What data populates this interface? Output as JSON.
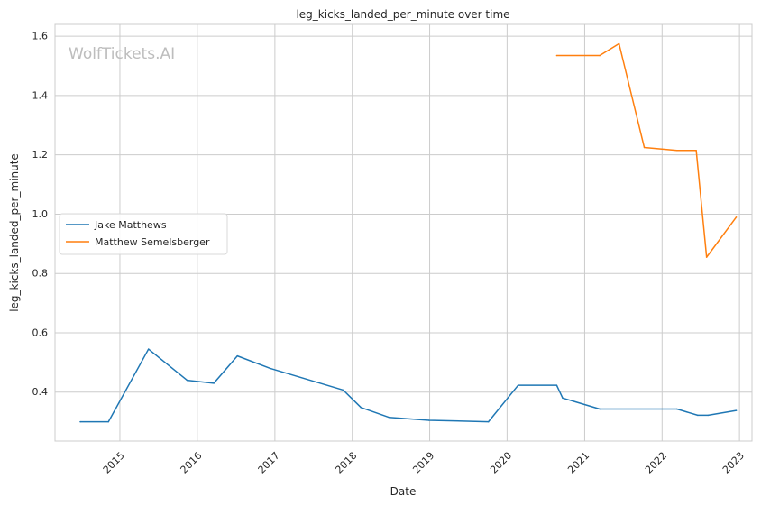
{
  "chart_data": {
    "type": "line",
    "title": "leg_kicks_landed_per_minute over time",
    "xlabel": "Date",
    "ylabel": "leg_kicks_landed_per_minute",
    "watermark": "WolfTickets.AI",
    "xlim": [
      "2014-03-01",
      "2023-03-01"
    ],
    "ylim": [
      0.235,
      1.64
    ],
    "x_ticks": [
      "2015",
      "2016",
      "2017",
      "2018",
      "2019",
      "2020",
      "2021",
      "2022",
      "2023"
    ],
    "y_ticks": [
      "0.4",
      "0.6",
      "0.8",
      "1.0",
      "1.2",
      "1.4",
      "1.6"
    ],
    "grid": true,
    "legend_position": "center-left",
    "series": [
      {
        "name": "Jake Matthews",
        "color": "#1f77b4",
        "points": [
          {
            "x": "2014-06-28",
            "y": 0.3
          },
          {
            "x": "2014-11-08",
            "y": 0.3
          },
          {
            "x": "2015-05-16",
            "y": 0.545
          },
          {
            "x": "2015-11-14",
            "y": 0.44
          },
          {
            "x": "2016-03-19",
            "y": 0.43
          },
          {
            "x": "2016-07-08",
            "y": 0.522
          },
          {
            "x": "2016-12-10",
            "y": 0.48
          },
          {
            "x": "2017-11-19",
            "y": 0.407
          },
          {
            "x": "2018-02-11",
            "y": 0.348
          },
          {
            "x": "2018-06-23",
            "y": 0.315
          },
          {
            "x": "2018-12-29",
            "y": 0.305
          },
          {
            "x": "2019-10-05",
            "y": 0.3
          },
          {
            "x": "2020-02-22",
            "y": 0.423
          },
          {
            "x": "2020-08-22",
            "y": 0.423
          },
          {
            "x": "2020-09-19",
            "y": 0.38
          },
          {
            "x": "2021-03-13",
            "y": 0.343
          },
          {
            "x": "2022-03-12",
            "y": 0.343
          },
          {
            "x": "2022-06-18",
            "y": 0.322
          },
          {
            "x": "2022-08-06",
            "y": 0.322
          },
          {
            "x": "2022-12-17",
            "y": 0.338
          }
        ]
      },
      {
        "name": "Matthew Semelsberger",
        "color": "#ff7f0e",
        "points": [
          {
            "x": "2020-08-22",
            "y": 1.535
          },
          {
            "x": "2021-03-13",
            "y": 1.535
          },
          {
            "x": "2021-06-12",
            "y": 1.575
          },
          {
            "x": "2021-10-09",
            "y": 1.225
          },
          {
            "x": "2022-03-12",
            "y": 1.215
          },
          {
            "x": "2022-06-11",
            "y": 1.215
          },
          {
            "x": "2022-07-30",
            "y": 0.855
          },
          {
            "x": "2022-12-17",
            "y": 0.99
          }
        ]
      }
    ]
  }
}
